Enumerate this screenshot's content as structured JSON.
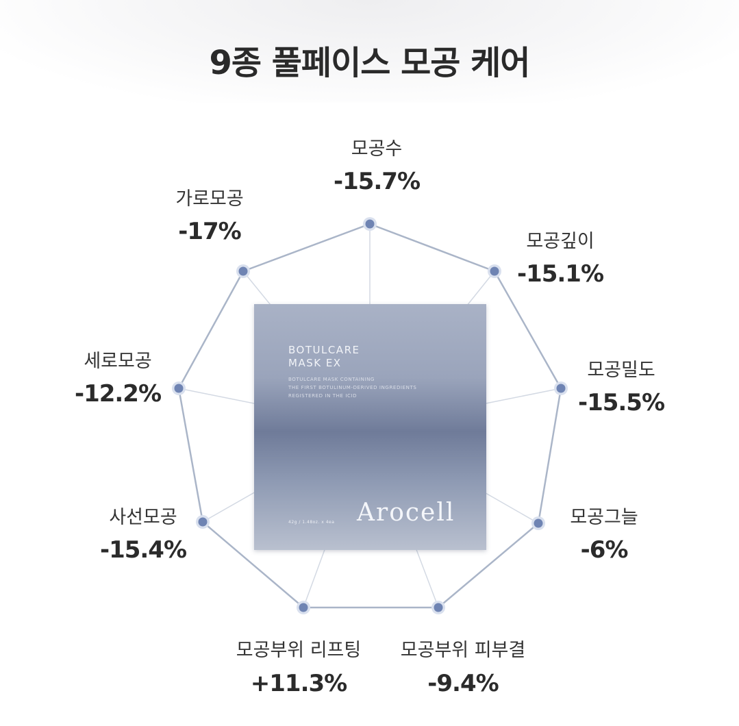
{
  "title": "9종 풀페이스 모공 케어",
  "product": {
    "brand_line1": "BOTULCARE",
    "brand_line2": "MASK EX",
    "fine_line1": "BOTULCARE MASK CONTAINING",
    "fine_line2": "THE FIRST BOTULINUM-DERIVED INGREDIENTS",
    "fine_line3": "REGISTERED IN THE ICID",
    "logo": "Arocell",
    "size": "42g / 1.48oz. x 4ea"
  },
  "metrics": [
    {
      "label": "모공수",
      "value": "-15.7%"
    },
    {
      "label": "모공깊이",
      "value": "-15.1%"
    },
    {
      "label": "모공밀도",
      "value": "-15.5%"
    },
    {
      "label": "모공그늘",
      "value": "-6%"
    },
    {
      "label": "모공부위 피부결",
      "value": "-9.4%"
    },
    {
      "label": "모공부위 리프팅",
      "value": "+11.3%"
    },
    {
      "label": "사선모공",
      "value": "-15.4%"
    },
    {
      "label": "세로모공",
      "value": "-12.2%"
    },
    {
      "label": "가로모공",
      "value": "-17%"
    }
  ],
  "colors": {
    "line": "#aab5c8",
    "dot": "#6f84b3",
    "dot_ring": "#d9e0ee"
  }
}
